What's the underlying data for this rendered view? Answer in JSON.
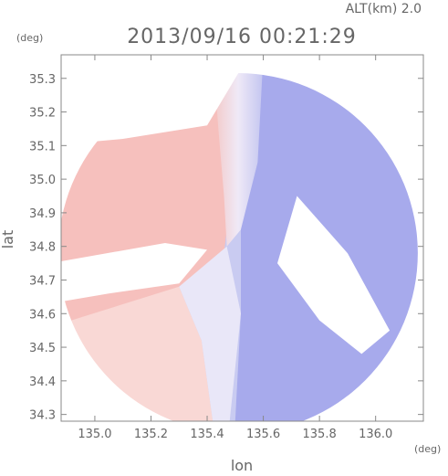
{
  "header": {
    "alt_label": "ALT(km) 2.0",
    "datetime": "2013/09/16 00:21:29"
  },
  "chart_data": {
    "type": "heatmap",
    "title": "2013/09/16 00:21:29",
    "xlabel": "lon",
    "ylabel": "lat",
    "x_unit": "(deg)",
    "y_unit": "(deg)",
    "xlim": [
      134.88,
      136.17
    ],
    "ylim": [
      34.28,
      35.37
    ],
    "x_ticks": [
      135.0,
      135.2,
      135.4,
      135.6,
      135.8,
      136.0
    ],
    "x_tick_labels": [
      "135.0",
      "135.2",
      "135.4",
      "135.6",
      "135.8",
      "136.0"
    ],
    "y_ticks": [
      34.3,
      34.4,
      34.5,
      34.6,
      34.7,
      34.8,
      34.9,
      35.0,
      35.1,
      35.2,
      35.3
    ],
    "y_tick_labels": [
      "34.3",
      "34.4",
      "34.5",
      "34.6",
      "34.7",
      "34.8",
      "34.9",
      "35.0",
      "35.1",
      "35.2",
      "35.3"
    ],
    "grid": false,
    "radar_center": {
      "lon": 135.51,
      "lat": 34.78
    },
    "regions": [
      {
        "kind": "outer-coverage",
        "color": "#c9cbf1"
      },
      {
        "kind": "receding-sector",
        "color": "#f6c0bd"
      },
      {
        "kind": "approaching-east",
        "color": "#a7aaec"
      },
      {
        "kind": "near-zero-transition",
        "color": "#e9e7f8"
      },
      {
        "kind": "southwest-sector",
        "color": "#f9d8d5"
      },
      {
        "kind": "blocked-sector-gap",
        "color": "#ffffff"
      },
      {
        "kind": "blocked-east-gap",
        "color": "#ffffff"
      }
    ]
  }
}
